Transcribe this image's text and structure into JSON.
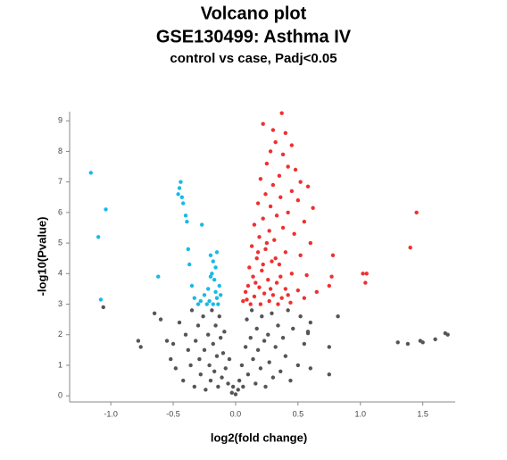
{
  "chart_data": {
    "type": "scatter",
    "title": "Volcano plot",
    "subtitle": "GSE130499: Asthma IV",
    "subtitle2": "control vs case, Padj<0.05",
    "x_label": "log2(fold change)",
    "y_label": "-log10(Pvalue)",
    "xlim": [
      -1.33,
      1.76
    ],
    "ylim": [
      -0.2,
      9.3
    ],
    "xticks": [
      {
        "value": -1,
        "label": "-1.0"
      },
      -0.5,
      {
        "value": 0,
        "label": "0.0"
      },
      0.5,
      {
        "value": 1,
        "label": "1.0"
      },
      1.5
    ],
    "yticks": [
      0,
      1,
      2,
      3,
      4,
      5,
      6,
      7,
      8,
      9
    ],
    "grid": false,
    "series": [
      {
        "color": "#555555",
        "x": [
          -1.06,
          -0.78,
          -0.76,
          -0.65,
          -0.6,
          -0.55,
          -0.5,
          -0.52,
          -0.48,
          -0.45,
          -0.42,
          -0.4,
          -0.38,
          -0.36,
          -0.35,
          -0.33,
          -0.32,
          -0.3,
          -0.29,
          -0.28,
          -0.26,
          -0.25,
          -0.24,
          -0.22,
          -0.21,
          -0.2,
          -0.19,
          -0.18,
          -0.17,
          -0.16,
          -0.15,
          -0.14,
          -0.13,
          -0.12,
          -0.11,
          -0.1,
          -0.09,
          -0.08,
          -0.06,
          -0.05,
          -0.03,
          -0.02,
          0.0,
          0.02,
          0.03,
          0.05,
          0.06,
          0.08,
          0.09,
          0.1,
          0.12,
          0.13,
          0.14,
          0.16,
          0.17,
          0.18,
          0.2,
          0.21,
          0.23,
          0.24,
          0.26,
          0.27,
          0.29,
          0.3,
          0.32,
          0.34,
          0.36,
          0.38,
          0.4,
          0.42,
          0.44,
          0.46,
          0.5,
          0.52,
          0.55,
          0.58,
          0.6,
          0.75,
          0.75,
          0.82,
          1.3,
          1.38,
          1.48,
          1.5,
          1.6,
          1.68,
          1.7,
          0.6,
          0.58
        ],
        "values": [
          2.9,
          1.8,
          1.6,
          2.7,
          2.5,
          1.8,
          1.7,
          1.2,
          0.9,
          2.4,
          0.5,
          2.0,
          1.5,
          1.0,
          2.8,
          0.3,
          1.8,
          2.3,
          1.2,
          0.7,
          2.6,
          1.5,
          0.2,
          2.0,
          1.0,
          0.5,
          2.8,
          1.7,
          0.8,
          2.3,
          1.3,
          0.3,
          2.6,
          1.9,
          0.6,
          1.4,
          2.1,
          0.9,
          0.4,
          1.2,
          0.1,
          0.3,
          0.05,
          0.2,
          0.5,
          1.0,
          0.3,
          1.6,
          2.5,
          0.7,
          1.9,
          2.8,
          1.2,
          0.4,
          2.2,
          1.5,
          0.9,
          2.6,
          1.8,
          0.3,
          2.0,
          1.1,
          2.7,
          0.6,
          1.6,
          2.3,
          0.8,
          1.9,
          1.3,
          2.8,
          0.5,
          2.2,
          1.0,
          2.6,
          1.7,
          2.1,
          0.9,
          1.6,
          0.7,
          2.6,
          1.75,
          1.7,
          1.8,
          1.75,
          1.85,
          2.05,
          2.0,
          2.4,
          2.05
        ]
      },
      {
        "color": "#1ab8e8",
        "x": [
          -1.16,
          -1.04,
          -1.1,
          -1.08,
          -0.62,
          -0.44,
          -0.45,
          -0.46,
          -0.43,
          -0.42,
          -0.4,
          -0.39,
          -0.27,
          -0.38,
          -0.37,
          -0.35,
          -0.33,
          -0.3,
          -0.28,
          -0.25,
          -0.22,
          -0.2,
          -0.18,
          -0.19,
          -0.17,
          -0.16,
          -0.15,
          -0.14,
          -0.21,
          -0.13,
          -0.2,
          -0.16,
          -0.12,
          -0.18,
          -0.23,
          -0.15
        ],
        "values": [
          7.3,
          6.1,
          5.2,
          3.15,
          3.9,
          7.0,
          6.8,
          6.6,
          6.5,
          6.3,
          5.9,
          5.7,
          5.6,
          4.8,
          4.3,
          3.6,
          3.2,
          3.0,
          3.1,
          3.3,
          3.5,
          4.6,
          4.4,
          4.0,
          3.8,
          3.4,
          3.2,
          3.0,
          3.1,
          3.6,
          3.9,
          4.2,
          3.3,
          3.0,
          3.0,
          4.7
        ]
      },
      {
        "color": "#f03030",
        "x": [
          0.22,
          0.37,
          0.3,
          0.4,
          0.32,
          0.45,
          0.28,
          0.38,
          0.25,
          0.42,
          0.48,
          0.35,
          0.2,
          0.52,
          0.3,
          0.58,
          0.45,
          0.24,
          0.36,
          0.5,
          0.18,
          0.28,
          0.62,
          0.42,
          0.33,
          0.22,
          0.55,
          0.15,
          0.38,
          0.27,
          0.47,
          0.19,
          0.31,
          0.6,
          0.13,
          0.24,
          0.4,
          0.52,
          0.17,
          0.29,
          0.35,
          0.11,
          0.21,
          0.45,
          0.57,
          0.14,
          0.26,
          0.33,
          0.1,
          0.19,
          0.4,
          0.5,
          0.08,
          0.23,
          0.3,
          0.15,
          0.37,
          0.09,
          0.27,
          0.44,
          0.12,
          0.2,
          0.34,
          0.06,
          0.16,
          0.22,
          0.28,
          0.36,
          0.18,
          0.25,
          0.32,
          0.42,
          0.55,
          0.65,
          0.78,
          0.77,
          0.75,
          1.05,
          1.04,
          1.02,
          1.45,
          1.4
        ],
        "values": [
          8.9,
          9.25,
          8.7,
          8.6,
          8.3,
          8.2,
          8.0,
          7.9,
          7.6,
          7.5,
          7.4,
          7.2,
          7.1,
          7.0,
          6.9,
          6.85,
          6.7,
          6.6,
          6.5,
          6.4,
          6.3,
          6.2,
          6.15,
          6.0,
          5.9,
          5.8,
          5.7,
          5.6,
          5.5,
          5.4,
          5.3,
          5.2,
          5.1,
          5.0,
          4.9,
          4.8,
          4.7,
          4.6,
          4.5,
          4.4,
          4.3,
          4.2,
          4.1,
          4.0,
          3.95,
          3.9,
          3.8,
          3.7,
          3.6,
          3.55,
          3.5,
          3.45,
          3.4,
          3.35,
          3.3,
          3.25,
          3.2,
          3.15,
          3.1,
          3.05,
          3.0,
          3.0,
          3.0,
          3.1,
          3.7,
          4.3,
          3.5,
          3.9,
          4.7,
          5.0,
          4.5,
          3.3,
          3.2,
          3.4,
          4.6,
          3.9,
          3.6,
          4.0,
          3.7,
          4.0,
          6.0,
          4.85
        ]
      }
    ]
  }
}
